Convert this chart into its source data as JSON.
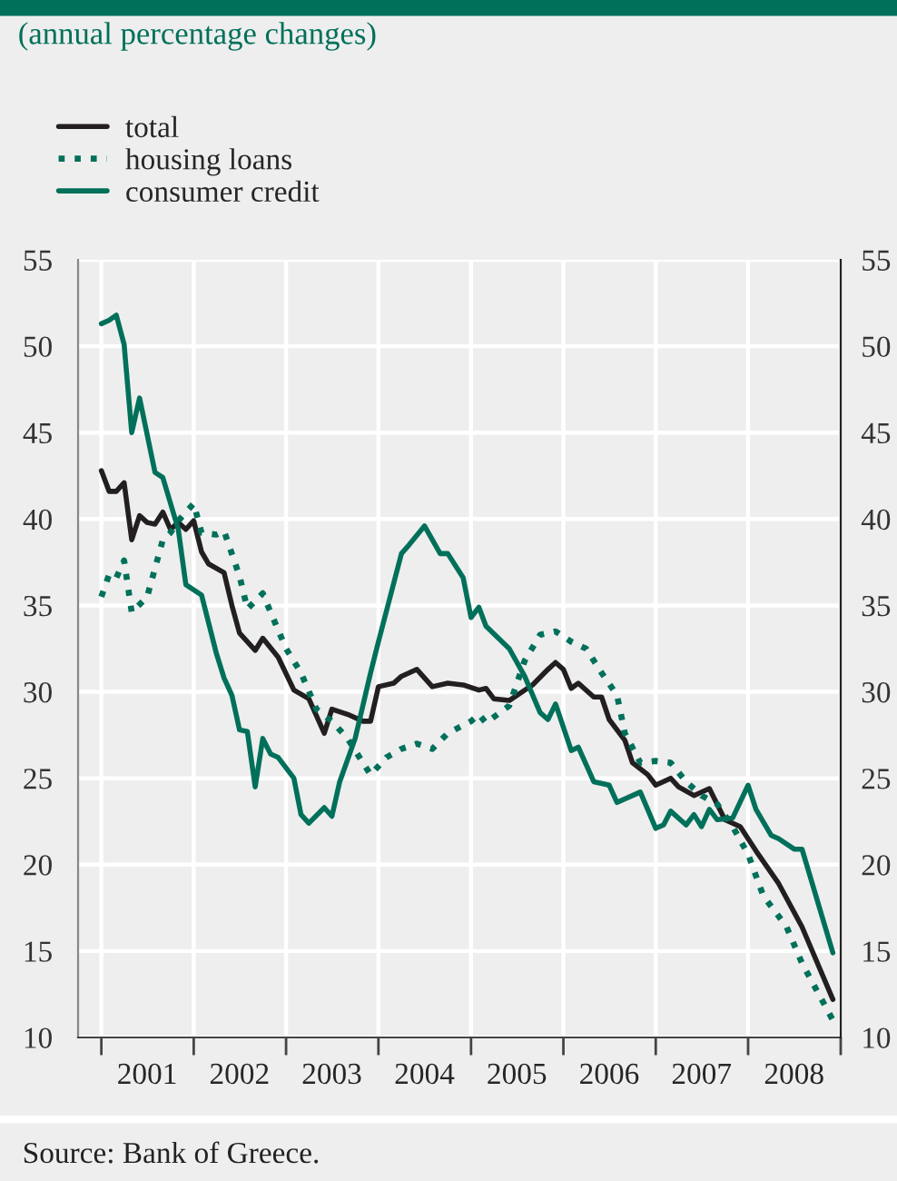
{
  "chart_data": {
    "type": "line",
    "title": "(annual percentage changes)",
    "annotations": [
      "Source: Bank of Greece."
    ],
    "series": [
      {
        "name": "total",
        "color": "#231f20",
        "line_style": "solid",
        "x": [
          "2001-01",
          "2001-02",
          "2001-03",
          "2001-04",
          "2001-05",
          "2001-06",
          "2001-07",
          "2001-08",
          "2001-09",
          "2001-10",
          "2001-11",
          "2001-12",
          "2002-01",
          "2002-02",
          "2002-03",
          "2002-05",
          "2002-06",
          "2002-07",
          "2002-09",
          "2002-10",
          "2002-12",
          "2003-02",
          "2003-04",
          "2003-06",
          "2003-07",
          "2003-09",
          "2003-11",
          "2003-12",
          "2004-01",
          "2004-03",
          "2004-04",
          "2004-06",
          "2004-08",
          "2004-10",
          "2004-12",
          "2005-02",
          "2005-03",
          "2005-04",
          "2005-06",
          "2005-09",
          "2005-11",
          "2005-12",
          "2006-01",
          "2006-02",
          "2006-03",
          "2006-05",
          "2006-06",
          "2006-07",
          "2006-09",
          "2006-10",
          "2006-12",
          "2007-01",
          "2007-03",
          "2007-04",
          "2007-06",
          "2007-08",
          "2007-10",
          "2007-12",
          "2008-02",
          "2008-05",
          "2008-08",
          "2008-12"
        ],
        "values": [
          42.8,
          41.6,
          41.6,
          42.1,
          38.8,
          40.2,
          39.8,
          39.7,
          40.4,
          39.4,
          39.8,
          39.4,
          39.9,
          38.1,
          37.4,
          36.9,
          35.0,
          33.4,
          32.4,
          33.1,
          32.0,
          30.1,
          29.6,
          27.6,
          29.0,
          28.7,
          28.3,
          28.3,
          30.3,
          30.5,
          30.9,
          31.3,
          30.3,
          30.5,
          30.4,
          30.1,
          30.2,
          29.6,
          29.5,
          30.4,
          31.3,
          31.7,
          31.3,
          30.2,
          30.5,
          29.7,
          29.7,
          28.4,
          27.2,
          25.9,
          25.2,
          24.6,
          25.0,
          24.5,
          24.0,
          24.4,
          22.6,
          22.2,
          20.8,
          18.9,
          16.4,
          12.2
        ]
      },
      {
        "name": "housing loans",
        "color": "#00705a",
        "line_style": "dotted",
        "x": [
          "2001-01",
          "2001-02",
          "2001-03",
          "2001-04",
          "2001-05",
          "2001-07",
          "2001-09",
          "2001-10",
          "2001-11",
          "2002-01",
          "2002-02",
          "2002-04",
          "2002-05",
          "2002-07",
          "2002-08",
          "2002-10",
          "2002-11",
          "2003-01",
          "2003-03",
          "2003-05",
          "2003-07",
          "2003-09",
          "2003-12",
          "2004-02",
          "2004-04",
          "2004-06",
          "2004-08",
          "2004-10",
          "2005-01",
          "2005-02",
          "2005-03",
          "2005-06",
          "2005-08",
          "2005-10",
          "2005-12",
          "2006-02",
          "2006-04",
          "2006-06",
          "2006-08",
          "2006-09",
          "2006-11",
          "2007-01",
          "2007-03",
          "2007-05",
          "2007-07",
          "2007-09",
          "2007-11",
          "2008-01",
          "2008-03",
          "2008-06",
          "2008-08",
          "2008-12"
        ],
        "values": [
          35.5,
          36.8,
          36.6,
          37.6,
          34.6,
          35.5,
          38.8,
          39.2,
          39.9,
          40.9,
          39.2,
          39.1,
          39.3,
          36.7,
          34.8,
          35.7,
          34.6,
          32.5,
          31.1,
          29.0,
          28.3,
          27.3,
          25.2,
          26.2,
          26.7,
          27.0,
          26.7,
          27.6,
          28.3,
          28.7,
          28.2,
          29.2,
          31.8,
          33.3,
          33.5,
          32.9,
          32.5,
          31.1,
          29.8,
          27.6,
          25.9,
          26.0,
          25.9,
          24.8,
          24.0,
          23.5,
          22.2,
          20.6,
          18.2,
          16.4,
          14.3,
          11.0
        ]
      },
      {
        "name": "consumer credit",
        "color": "#00705a",
        "line_style": "solid",
        "x": [
          "2001-01",
          "2001-02",
          "2001-03",
          "2001-04",
          "2001-05",
          "2001-06",
          "2001-08",
          "2001-09",
          "2001-11",
          "2001-12",
          "2002-02",
          "2002-04",
          "2002-05",
          "2002-06",
          "2002-07",
          "2002-08",
          "2002-09",
          "2002-10",
          "2002-11",
          "2002-12",
          "2003-02",
          "2003-03",
          "2003-04",
          "2003-06",
          "2003-07",
          "2003-08",
          "2003-10",
          "2003-12",
          "2004-01",
          "2004-04",
          "2004-05",
          "2004-07",
          "2004-09",
          "2004-10",
          "2004-12",
          "2005-01",
          "2005-02",
          "2005-03",
          "2005-06",
          "2005-08",
          "2005-10",
          "2005-11",
          "2005-12",
          "2006-02",
          "2006-03",
          "2006-05",
          "2006-07",
          "2006-08",
          "2006-11",
          "2007-01",
          "2007-02",
          "2007-03",
          "2007-05",
          "2007-06",
          "2007-07",
          "2007-08",
          "2007-09",
          "2007-11",
          "2008-01",
          "2008-02",
          "2008-04",
          "2008-05",
          "2008-07",
          "2008-08",
          "2008-12"
        ],
        "values": [
          51.3,
          51.5,
          51.8,
          50.1,
          45.0,
          47.0,
          42.7,
          42.4,
          39.4,
          36.2,
          35.6,
          32.2,
          30.8,
          29.8,
          27.8,
          27.7,
          24.5,
          27.3,
          26.4,
          26.2,
          25.0,
          22.9,
          22.4,
          23.3,
          22.8,
          24.8,
          27.3,
          31.1,
          32.9,
          38.0,
          38.5,
          39.6,
          38.0,
          38.0,
          36.6,
          34.3,
          34.9,
          33.8,
          32.5,
          30.9,
          28.8,
          28.4,
          29.3,
          26.6,
          26.8,
          24.8,
          24.6,
          23.6,
          24.2,
          22.1,
          22.3,
          23.1,
          22.3,
          22.9,
          22.2,
          23.2,
          22.6,
          22.7,
          24.6,
          23.2,
          21.7,
          21.5,
          20.9,
          20.9,
          14.9
        ]
      }
    ],
    "xlim": [
      "2000-10",
      "2009-01"
    ],
    "xticks": [
      {
        "value": "2001-01",
        "label": null
      },
      {
        "value": "2001-07",
        "label": "2001"
      },
      {
        "value": "2002-01",
        "label": null
      },
      {
        "value": "2002-07",
        "label": "2002"
      },
      {
        "value": "2003-01",
        "label": null
      },
      {
        "value": "2003-07",
        "label": "2003"
      },
      {
        "value": "2004-01",
        "label": null
      },
      {
        "value": "2004-07",
        "label": "2004"
      },
      {
        "value": "2005-01",
        "label": null
      },
      {
        "value": "2005-07",
        "label": "2005"
      },
      {
        "value": "2006-01",
        "label": null
      },
      {
        "value": "2006-07",
        "label": "2006"
      },
      {
        "value": "2007-01",
        "label": null
      },
      {
        "value": "2007-07",
        "label": "2007"
      },
      {
        "value": "2008-01",
        "label": null
      },
      {
        "value": "2008-07",
        "label": "2008"
      },
      {
        "value": "2009-01",
        "label": null
      }
    ],
    "ylim": [
      10,
      55
    ],
    "yticks": [
      10,
      15,
      20,
      25,
      30,
      35,
      40,
      45,
      50,
      55
    ],
    "y2lim": [
      10,
      55
    ],
    "y2ticks": [
      10,
      15,
      20,
      25,
      30,
      35,
      40,
      45,
      50,
      55
    ],
    "grid": true,
    "legend": "top left",
    "marker": "none"
  }
}
